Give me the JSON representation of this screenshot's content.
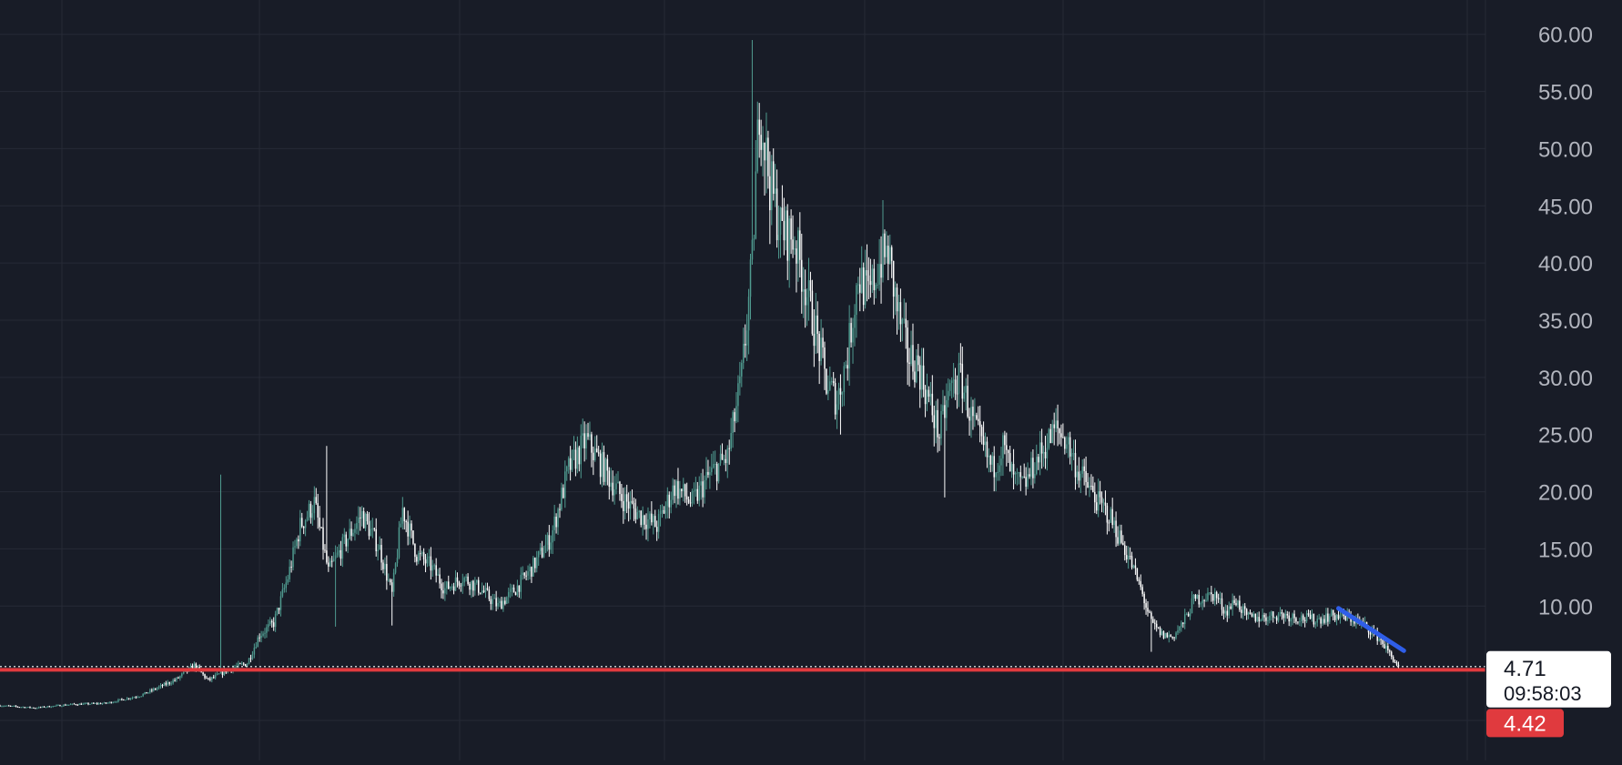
{
  "chart_data": {
    "type": "candlestick",
    "title": "",
    "xlabel": "",
    "ylabel": "",
    "ylim": [
      -3.5,
      63
    ],
    "y_tick_labels": [
      "60.00",
      "55.00",
      "50.00",
      "45.00",
      "40.00",
      "35.00",
      "30.00",
      "25.00",
      "20.00",
      "15.00",
      "10.00"
    ],
    "grid": true,
    "colors": {
      "background": "#181c27",
      "grid": "#262a36",
      "up": "#4f9a8f",
      "down": "#ffffff",
      "axis_text": "#b2b5be",
      "support_line": "#e03a3e",
      "trend_line": "#2f5ee8",
      "current_price_line": "#ffffff"
    },
    "price_path": [
      [
        0,
        1.3
      ],
      [
        20,
        1.1
      ],
      [
        40,
        1.4
      ],
      [
        60,
        1.5
      ],
      [
        80,
        2.2
      ],
      [
        100,
        3.6
      ],
      [
        110,
        4.8
      ],
      [
        118,
        3.5
      ],
      [
        130,
        4.5
      ],
      [
        140,
        5.0
      ],
      [
        147,
        7.5
      ],
      [
        155,
        8.5
      ],
      [
        163,
        12.5
      ],
      [
        170,
        17
      ],
      [
        178,
        19
      ],
      [
        186,
        13
      ],
      [
        195,
        15.5
      ],
      [
        205,
        18
      ],
      [
        215,
        15
      ],
      [
        222,
        11
      ],
      [
        228,
        18.5
      ],
      [
        236,
        14.5
      ],
      [
        244,
        13.5
      ],
      [
        252,
        11.5
      ],
      [
        262,
        12.5
      ],
      [
        272,
        11.5
      ],
      [
        282,
        10
      ],
      [
        292,
        11.5
      ],
      [
        302,
        13.5
      ],
      [
        312,
        16
      ],
      [
        322,
        22
      ],
      [
        332,
        24.5
      ],
      [
        342,
        22
      ],
      [
        352,
        19.5
      ],
      [
        362,
        18
      ],
      [
        372,
        17
      ],
      [
        382,
        20.5
      ],
      [
        392,
        19
      ],
      [
        402,
        21.5
      ],
      [
        412,
        23
      ],
      [
        420,
        30
      ],
      [
        426,
        40
      ],
      [
        430,
        54
      ],
      [
        436,
        47
      ],
      [
        442,
        43
      ],
      [
        450,
        42
      ],
      [
        456,
        38
      ],
      [
        462,
        34
      ],
      [
        468,
        29.5
      ],
      [
        474,
        28
      ],
      [
        480,
        32
      ],
      [
        486,
        39
      ],
      [
        492,
        37
      ],
      [
        498,
        40
      ],
      [
        503,
        41
      ],
      [
        508,
        36
      ],
      [
        514,
        32
      ],
      [
        520,
        31
      ],
      [
        526,
        28
      ],
      [
        532,
        25
      ],
      [
        538,
        29
      ],
      [
        544,
        30
      ],
      [
        550,
        26.5
      ],
      [
        556,
        24
      ],
      [
        562,
        22
      ],
      [
        568,
        24
      ],
      [
        574,
        21
      ],
      [
        580,
        20.5
      ],
      [
        586,
        22.5
      ],
      [
        592,
        24
      ],
      [
        598,
        25.5
      ],
      [
        604,
        24.5
      ],
      [
        610,
        22
      ],
      [
        616,
        20.5
      ],
      [
        622,
        19
      ],
      [
        628,
        18
      ],
      [
        634,
        16
      ],
      [
        640,
        14
      ],
      [
        646,
        11.5
      ],
      [
        652,
        8.5
      ],
      [
        658,
        7.5
      ],
      [
        664,
        7.3
      ],
      [
        670,
        8.5
      ],
      [
        676,
        10.5
      ],
      [
        682,
        10.8
      ],
      [
        688,
        11
      ],
      [
        694,
        9.5
      ],
      [
        700,
        10.5
      ],
      [
        706,
        9.0
      ],
      [
        715,
        9.0
      ],
      [
        725,
        9.3
      ],
      [
        735,
        9.0
      ],
      [
        745,
        8.8
      ],
      [
        755,
        9.2
      ],
      [
        765,
        8.9
      ],
      [
        772,
        8.4
      ],
      [
        777,
        7.8
      ],
      [
        782,
        7.0
      ],
      [
        787,
        5.8
      ],
      [
        792,
        4.71
      ]
    ],
    "peaks": [
      [
        125,
        21.5
      ],
      [
        185,
        24
      ],
      [
        426,
        59.5
      ],
      [
        500,
        45.5
      ]
    ],
    "troughs": [
      [
        190,
        8.2
      ],
      [
        222,
        8.3
      ],
      [
        476,
        25
      ],
      [
        535,
        19.5
      ],
      [
        652,
        6.0
      ]
    ],
    "support_line": {
      "value": 4.42,
      "label": "4.42"
    },
    "trend_line": {
      "from": [
        758,
        9.8
      ],
      "to": [
        795,
        6.1
      ]
    },
    "current_price": {
      "value": 4.71,
      "label": "4.71",
      "countdown": "09:58:03"
    }
  }
}
